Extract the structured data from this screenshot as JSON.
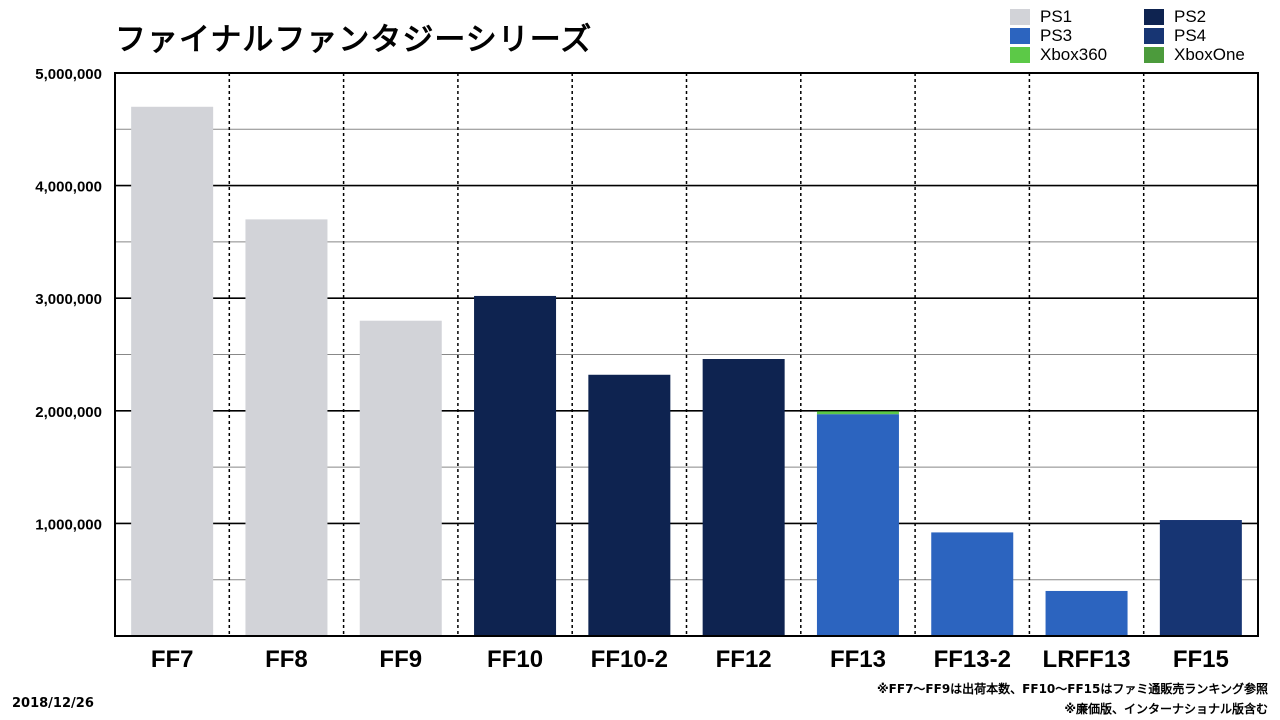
{
  "title": "ファイナルファンタジーシリーズ",
  "date": "2018/12/26",
  "footnotes": [
    "※FF7〜FF9は出荷本数、FF10〜FF15はファミ通販売ランキング参照",
    "※廉価版、インターナショナル版含む"
  ],
  "colors": {
    "PS1": "#d2d3d8",
    "PS2": "#0e2350",
    "PS3": "#2c64bf",
    "PS4": "#173573",
    "Xbox360": "#5cc947",
    "XboxOne": "#4c9b3c"
  },
  "legend": [
    {
      "label": "PS1",
      "color_key": "PS1"
    },
    {
      "label": "PS2",
      "color_key": "PS2"
    },
    {
      "label": "PS3",
      "color_key": "PS3"
    },
    {
      "label": "PS4",
      "color_key": "PS4"
    },
    {
      "label": "Xbox360",
      "color_key": "Xbox360"
    },
    {
      "label": "XboxOne",
      "color_key": "XboxOne"
    }
  ],
  "chart_data": {
    "type": "bar",
    "stacked": true,
    "categories": [
      "FF7",
      "FF8",
      "FF9",
      "FF10",
      "FF10-2",
      "FF12",
      "FF13",
      "FF13-2",
      "LRFF13",
      "FF15"
    ],
    "series": [
      {
        "name": "PS1",
        "values": [
          4700000,
          3700000,
          2800000,
          0,
          0,
          0,
          0,
          0,
          0,
          0
        ]
      },
      {
        "name": "PS2",
        "values": [
          0,
          0,
          0,
          3020000,
          2320000,
          2460000,
          0,
          0,
          0,
          0
        ]
      },
      {
        "name": "PS3",
        "values": [
          0,
          0,
          0,
          0,
          0,
          0,
          1970000,
          920000,
          400000,
          0
        ]
      },
      {
        "name": "PS4",
        "values": [
          0,
          0,
          0,
          0,
          0,
          0,
          0,
          0,
          0,
          1030000
        ]
      },
      {
        "name": "Xbox360",
        "values": [
          0,
          0,
          0,
          0,
          0,
          0,
          25000,
          0,
          0,
          0
        ]
      },
      {
        "name": "XboxOne",
        "values": [
          0,
          0,
          0,
          0,
          0,
          0,
          0,
          0,
          0,
          0
        ]
      }
    ],
    "y_ticks": [
      "1,000,000",
      "2,000,000",
      "3,000,000",
      "4,000,000",
      "5,000,000"
    ],
    "y_tick_values": [
      1000000,
      2000000,
      3000000,
      4000000,
      5000000
    ],
    "y_minor_gridlines": [
      500000,
      1500000,
      2500000,
      3500000,
      4500000
    ],
    "ylim": [
      0,
      5000000
    ],
    "grid": true,
    "legend_position": "top-right"
  }
}
